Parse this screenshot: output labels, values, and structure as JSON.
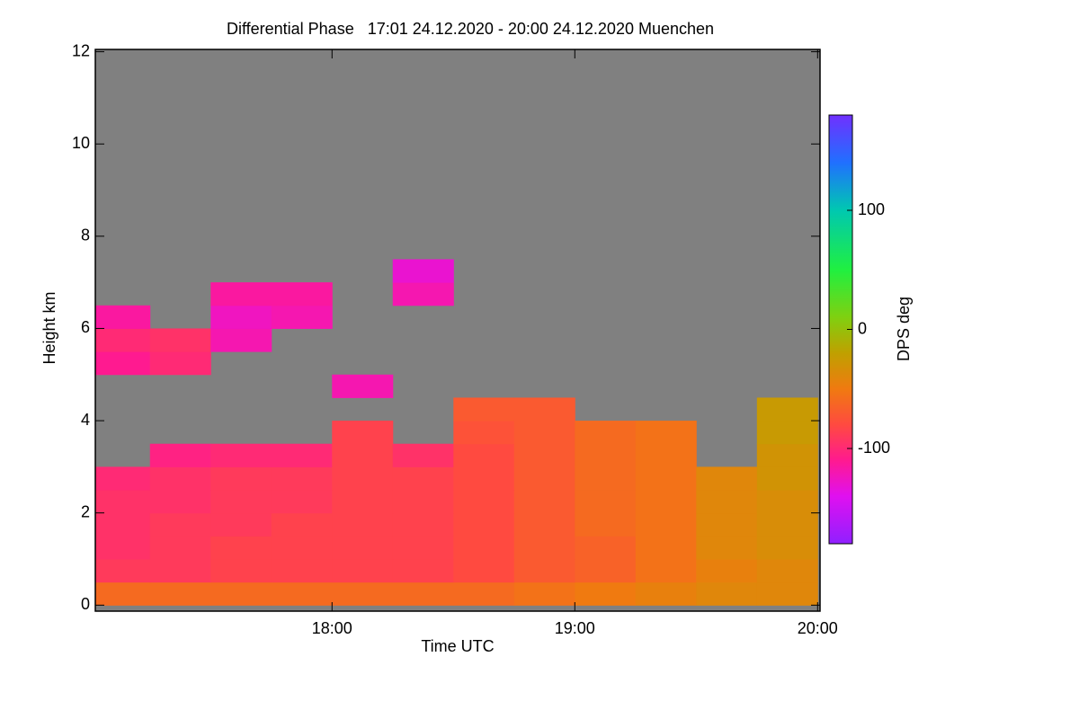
{
  "chart_data": {
    "type": "heatmap",
    "title": "Differential Phase   17:01 24.12.2020 - 20:00 24.12.2020 Muenchen",
    "x_label": "Time UTC",
    "y_label": "Height km",
    "xlim": [
      17.025,
      20.01
    ],
    "xticks": [
      {
        "value": 18,
        "label": "18:00"
      },
      {
        "value": 19,
        "label": "19:00"
      },
      {
        "value": 20,
        "label": "20:00"
      }
    ],
    "ylim": [
      -0.13,
      12.05
    ],
    "yticks": [
      0,
      2,
      4,
      6,
      8,
      10,
      12
    ],
    "background": "#808080",
    "x": [
      17.125,
      17.375,
      17.625,
      17.875,
      18.125,
      18.375,
      18.625,
      18.875,
      19.125,
      19.375,
      19.625,
      19.875
    ],
    "y": [
      0.25,
      0.75,
      1.25,
      1.75,
      2.25,
      2.75,
      3.25,
      3.75,
      4.25,
      4.75,
      5.25,
      5.75,
      6.25,
      6.75,
      7.25
    ],
    "z": [
      [
        -60,
        -60,
        -60,
        -60,
        -60,
        -60,
        -60,
        -55,
        -50,
        -45,
        -40,
        -40
      ],
      [
        -90,
        -90,
        -85,
        -85,
        -85,
        -85,
        -80,
        -70,
        -65,
        -55,
        -45,
        -40
      ],
      [
        -95,
        -90,
        -85,
        -85,
        -85,
        -85,
        -80,
        -70,
        -65,
        -55,
        -40,
        -35
      ],
      [
        -95,
        -90,
        -90,
        -85,
        -85,
        -85,
        -80,
        -70,
        -60,
        -55,
        -40,
        -35
      ],
      [
        -95,
        -95,
        -90,
        -90,
        -85,
        -85,
        -80,
        -70,
        -60,
        -55,
        -40,
        -35
      ],
      [
        -100,
        -95,
        -90,
        -90,
        -85,
        -85,
        -80,
        -70,
        -60,
        -55,
        -40,
        -30
      ],
      [
        null,
        -105,
        -100,
        -100,
        -85,
        -95,
        -80,
        -70,
        -60,
        -55,
        null,
        -30
      ],
      [
        null,
        null,
        null,
        null,
        -85,
        null,
        -75,
        -70,
        -60,
        -55,
        null,
        -25
      ],
      [
        null,
        null,
        null,
        null,
        null,
        null,
        -70,
        -70,
        null,
        null,
        null,
        -25
      ],
      [
        null,
        null,
        null,
        null,
        -120,
        null,
        null,
        null,
        null,
        null,
        null,
        null
      ],
      [
        -110,
        -100,
        null,
        null,
        null,
        null,
        null,
        null,
        null,
        null,
        null,
        null
      ],
      [
        -100,
        -95,
        -120,
        null,
        null,
        null,
        null,
        null,
        null,
        null,
        null,
        null
      ],
      [
        -115,
        null,
        -125,
        -120,
        null,
        null,
        null,
        null,
        null,
        null,
        null,
        null
      ],
      [
        null,
        null,
        -115,
        -115,
        null,
        -120,
        null,
        null,
        null,
        null,
        null,
        null
      ],
      [
        null,
        null,
        null,
        null,
        null,
        -130,
        null,
        null,
        null,
        null,
        null,
        null
      ]
    ],
    "colorbar": {
      "label": "DPS deg",
      "lim": [
        -180,
        180
      ],
      "ticks": [
        100,
        0,
        -100
      ],
      "colorscale": [
        [
          -180,
          "#9020ff"
        ],
        [
          -140,
          "#e010f0"
        ],
        [
          -110,
          "#ff1a90"
        ],
        [
          -80,
          "#ff4a40"
        ],
        [
          -50,
          "#f07a10"
        ],
        [
          -20,
          "#c0a000"
        ],
        [
          10,
          "#80d010"
        ],
        [
          50,
          "#20f040"
        ],
        [
          100,
          "#00c8b0"
        ],
        [
          140,
          "#2070ff"
        ],
        [
          180,
          "#7030ff"
        ]
      ]
    }
  }
}
